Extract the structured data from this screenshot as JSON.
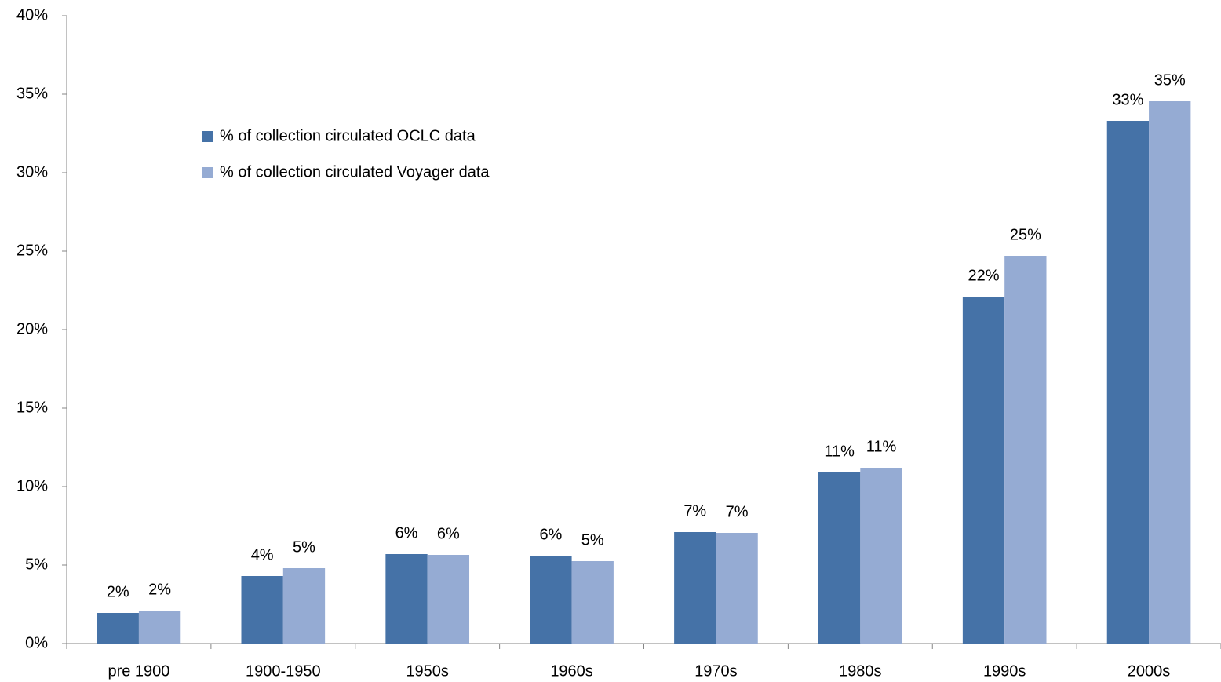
{
  "chart_data": {
    "type": "bar",
    "categories": [
      "pre 1900",
      "1900-1950",
      "1950s",
      "1960s",
      "1970s",
      "1980s",
      "1990s",
      "2000s"
    ],
    "series": [
      {
        "name": "% of collection circulated OCLC data",
        "color": "#4572a7",
        "values": [
          1.95,
          4.3,
          5.7,
          5.6,
          7.1,
          10.9,
          22.1,
          33.3
        ],
        "value_labels": [
          "2%",
          "4%",
          "6%",
          "6%",
          "7%",
          "11%",
          "22%",
          "33%"
        ]
      },
      {
        "name": "% of collection circulated Voyager data",
        "color": "#95abd3",
        "values": [
          2.1,
          4.8,
          5.65,
          5.25,
          7.05,
          11.2,
          24.7,
          34.55
        ],
        "value_labels": [
          "2%",
          "5%",
          "6%",
          "5%",
          "7%",
          "11%",
          "25%",
          "35%"
        ]
      }
    ],
    "ylim": [
      0,
      40
    ],
    "yticks": [
      {
        "value": 0,
        "label": "0%"
      },
      {
        "value": 5,
        "label": "5%"
      },
      {
        "value": 10,
        "label": "10%"
      },
      {
        "value": 15,
        "label": "15%"
      },
      {
        "value": 20,
        "label": "20%"
      },
      {
        "value": 25,
        "label": "25%"
      },
      {
        "value": 30,
        "label": "30%"
      },
      {
        "value": 35,
        "label": "35%"
      },
      {
        "value": 40,
        "label": "40%"
      }
    ],
    "grid": false,
    "legend": "upper-left"
  }
}
